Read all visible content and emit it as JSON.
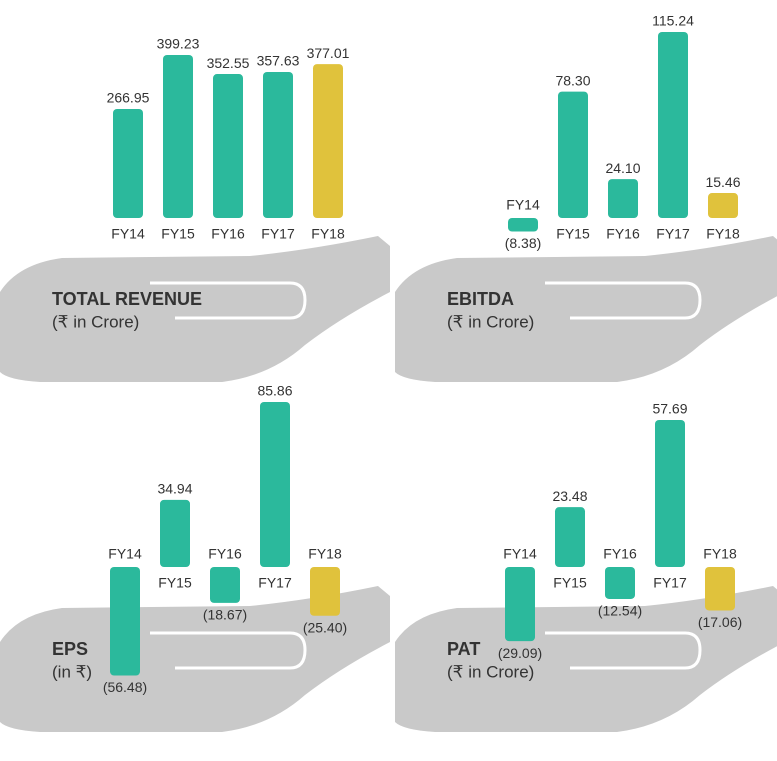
{
  "chart_data": [
    {
      "type": "bar",
      "title": "TOTAL REVENUE",
      "subtitle": "(₹ in Crore)",
      "categories": [
        "FY14",
        "FY15",
        "FY16",
        "FY17",
        "FY18"
      ],
      "values": [
        266.95,
        399.23,
        352.55,
        357.63,
        377.01
      ],
      "value_labels": [
        "266.95",
        "399.23",
        "352.55",
        "357.63",
        "377.01"
      ],
      "colors": [
        "#2bb99c",
        "#2bb99c",
        "#2bb99c",
        "#2bb99c",
        "#e0c23c"
      ]
    },
    {
      "type": "bar",
      "title": "EBITDA",
      "subtitle": "(₹ in Crore)",
      "categories": [
        "FY14",
        "FY15",
        "FY16",
        "FY17",
        "FY18"
      ],
      "values": [
        -8.38,
        78.3,
        24.1,
        115.24,
        15.46
      ],
      "value_labels": [
        "(8.38)",
        "78.30",
        "24.10",
        "115.24",
        "15.46"
      ],
      "colors": [
        "#2bb99c",
        "#2bb99c",
        "#2bb99c",
        "#2bb99c",
        "#e0c23c"
      ]
    },
    {
      "type": "bar",
      "title": "EPS",
      "subtitle": "(in ₹)",
      "categories": [
        "FY14",
        "FY15",
        "FY16",
        "FY17",
        "FY18"
      ],
      "values": [
        -56.48,
        34.94,
        -18.67,
        85.86,
        -25.4
      ],
      "value_labels": [
        "(56.48)",
        "34.94",
        "(18.67)",
        "85.86",
        "(25.40)"
      ],
      "colors": [
        "#2bb99c",
        "#2bb99c",
        "#2bb99c",
        "#2bb99c",
        "#e0c23c"
      ]
    },
    {
      "type": "bar",
      "title": "PAT",
      "subtitle": "(₹ in Crore)",
      "categories": [
        "FY14",
        "FY15",
        "FY16",
        "FY17",
        "FY18"
      ],
      "values": [
        -29.09,
        23.48,
        -12.54,
        57.69,
        -17.06
      ],
      "value_labels": [
        "(29.09)",
        "23.48",
        "(12.54)",
        "57.69",
        "(17.06)"
      ],
      "colors": [
        "#2bb99c",
        "#2bb99c",
        "#2bb99c",
        "#2bb99c",
        "#e0c23c"
      ]
    }
  ]
}
